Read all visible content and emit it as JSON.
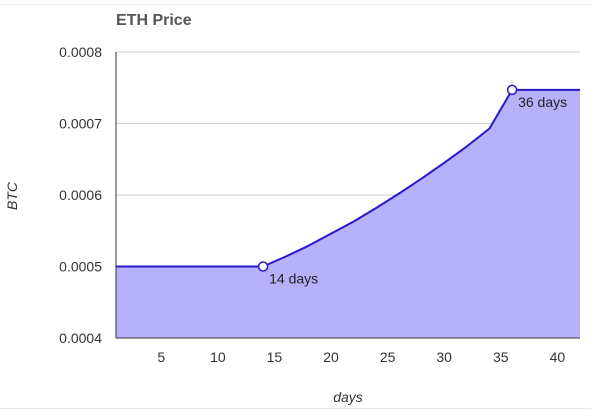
{
  "chart_data": {
    "type": "area",
    "title": "ETH Price",
    "xlabel": "days",
    "ylabel": "BTC",
    "xlim": [
      1,
      42
    ],
    "ylim": [
      0.0004,
      0.0008
    ],
    "x_ticks": [
      5,
      10,
      15,
      20,
      25,
      30,
      35,
      40
    ],
    "y_ticks": [
      "0.0004",
      "0.0005",
      "0.0006",
      "0.0007",
      "0.0008"
    ],
    "grid": true,
    "series": [
      {
        "x": [
          1,
          14,
          16,
          18,
          20,
          22,
          24,
          26,
          28,
          30,
          32,
          34,
          36,
          42
        ],
        "y": [
          0.0005,
          0.0005,
          0.000514,
          0.000529,
          0.000546,
          0.000563,
          0.000582,
          0.000602,
          0.000623,
          0.000645,
          0.000668,
          0.000693,
          0.000747,
          0.000747
        ]
      }
    ],
    "annotations": [
      {
        "x": 14,
        "y": 0.0005,
        "label": "14 days"
      },
      {
        "x": 36,
        "y": 0.000747,
        "label": "36 days"
      }
    ],
    "colors": {
      "line": "#2a17c8",
      "fill": "#b7b0fb",
      "grid": "#cccccc",
      "axis": "#333333"
    }
  }
}
